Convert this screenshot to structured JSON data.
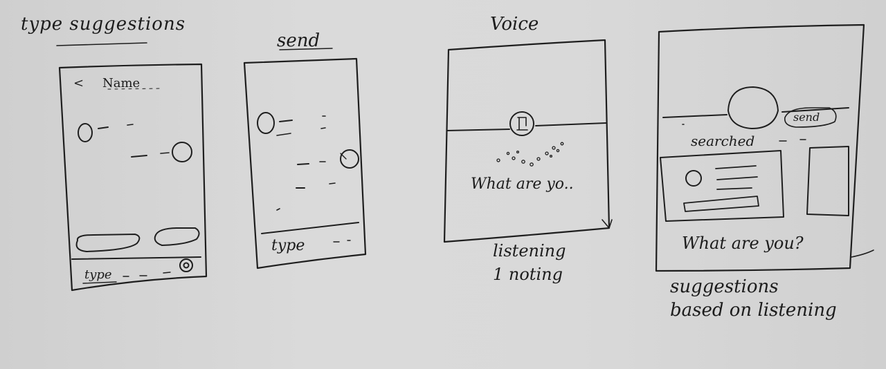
{
  "labels": {
    "type_suggestions": "type suggestions",
    "send": "send",
    "voice": "Voice",
    "name": "Name",
    "back_arrow": "<",
    "type_1": "type",
    "type_2": "type",
    "what_are_yo": "What are yo..",
    "listening_line1": "listening",
    "listening_line2": "1 noting",
    "send_pill": "send",
    "searched": "searched",
    "what_are_you": "What are you?",
    "suggestions_line1": "suggestions",
    "suggestions_line2": "based on listening"
  }
}
